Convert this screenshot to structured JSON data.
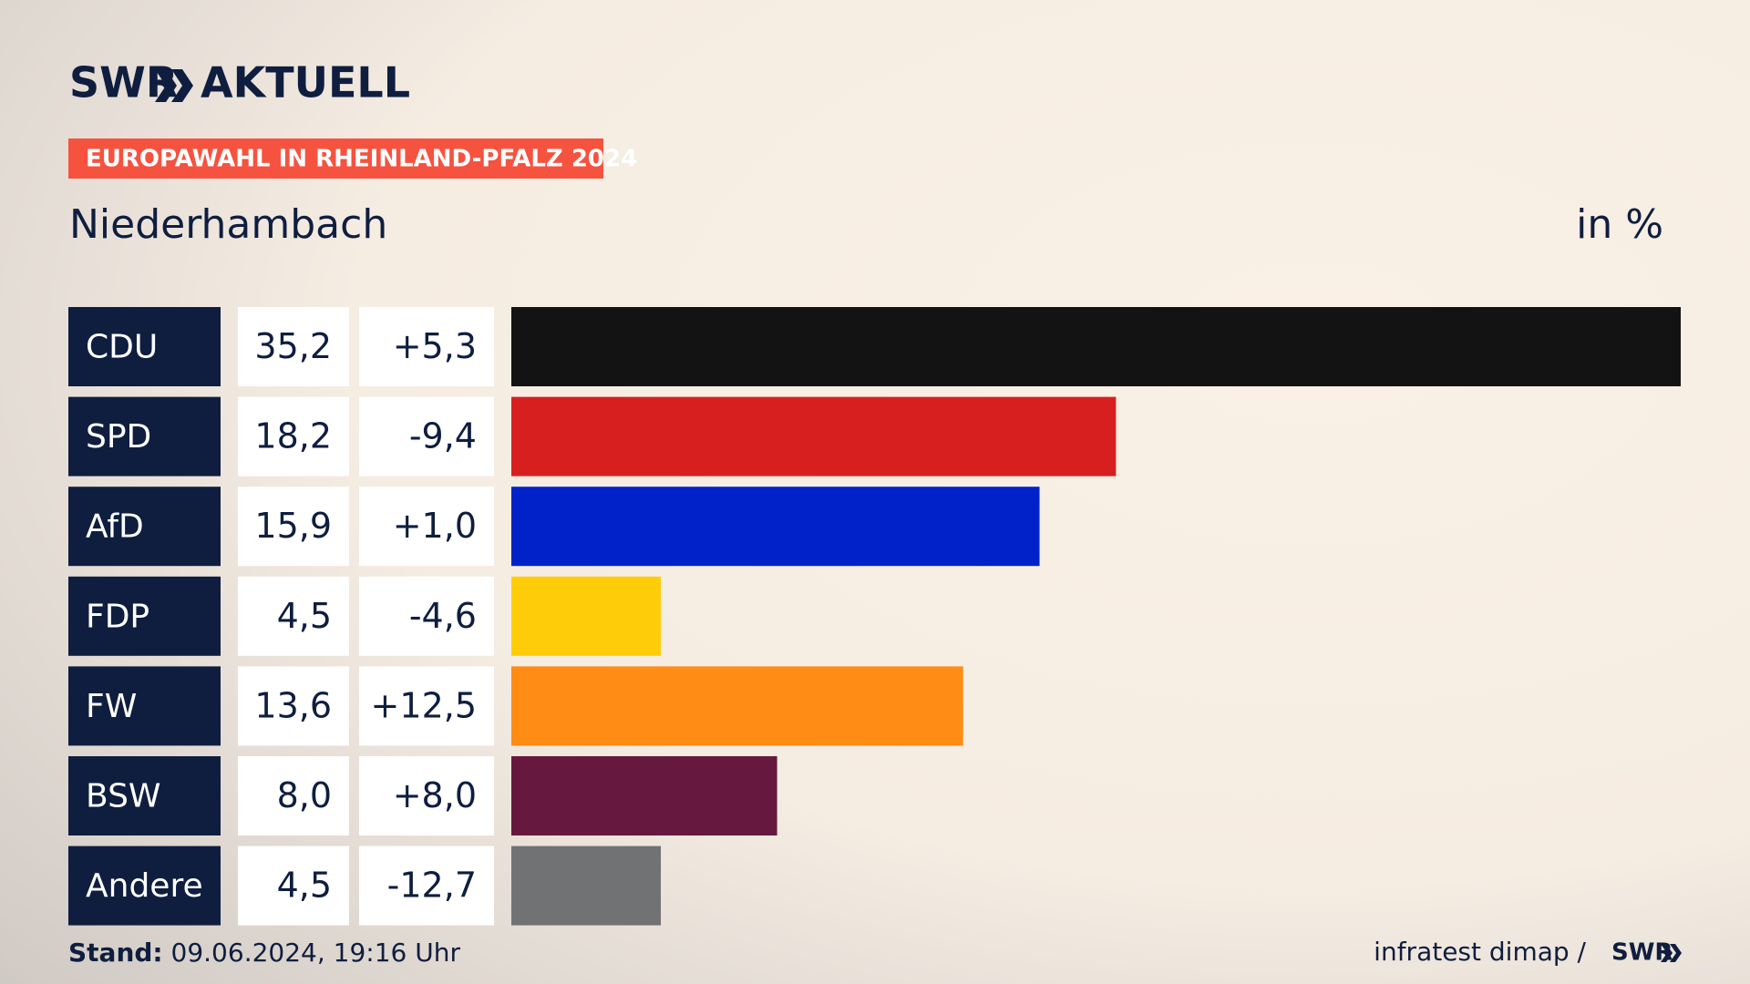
{
  "chart_data": {
    "type": "bar",
    "orientation": "horizontal",
    "brand": "SWR",
    "brand_suffix": "AKTUELL",
    "kicker": "EUROPAWAHL IN RHEINLAND-PFALZ 2024",
    "title": "Niederhambach",
    "unit_label": "in %",
    "categories": [
      "CDU",
      "SPD",
      "AfD",
      "FDP",
      "FW",
      "BSW",
      "Andere"
    ],
    "values": [
      35.2,
      18.2,
      15.9,
      4.5,
      13.6,
      8.0,
      4.5
    ],
    "value_labels": [
      "35,2",
      "18,2",
      "15,9",
      "4,5",
      "13,6",
      "8,0",
      "4,5"
    ],
    "changes": [
      5.3,
      -9.4,
      1.0,
      -4.6,
      12.5,
      8.0,
      -12.7
    ],
    "change_labels": [
      "+5,3",
      "-9,4",
      "+1,0",
      "-4,6",
      "+12,5",
      "+8,0",
      "-12,7"
    ],
    "colors": [
      "#131313",
      "#d71f1f",
      "#0022c8",
      "#ffcc0a",
      "#ff8c14",
      "#67183e",
      "#717274"
    ],
    "xlim": [
      0,
      35.2
    ],
    "footer_label": "Stand:",
    "footer_date": "09.06.2024, 19:16 Uhr",
    "source": "infratest dimap /",
    "source_brand": "SWR"
  }
}
